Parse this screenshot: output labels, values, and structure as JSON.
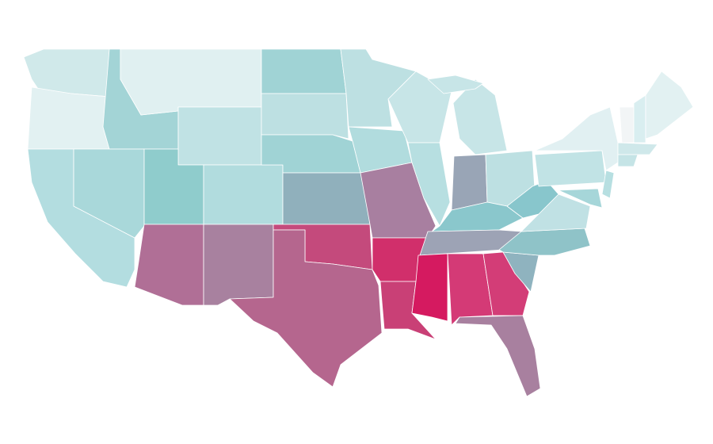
{
  "regions": [
    "#d0e9ea",
    "#e2f1f2",
    "#b3dde0",
    "#a3d4d6",
    "#a9d8da",
    "#e0f0f1",
    "#c0e2e4",
    "#8fcccc",
    "#b06f96",
    "#b1dcde",
    "#a8819f",
    "#a0d3d5",
    "#bde0e2",
    "#a0d3d5",
    "#90b0bc",
    "#c44a7c",
    "#b5668e",
    "#bde0e2",
    "#b1dcde",
    "#a87fa0",
    "#d12f6b",
    "#c94076",
    "#c7e5e7",
    "#b7dfe1",
    "#c7e5e7",
    "#c7e5e7",
    "#99a5b6",
    "#bde0e2",
    "#8ac7cc",
    "#9da3b5",
    "#d51a60",
    "#d43a76",
    "#d33d77",
    "#a8809f",
    "#8fb3bf",
    "#8fc3c8",
    "#c0e1e4",
    "#88c6cc",
    "#c1e3e5",
    "#e1f0f2",
    "#f2f5f6",
    "#d9eef0",
    "#e2f1f2",
    "#cfe8ea",
    "#c5e4e6",
    "#b7dfe1",
    "#a6d6d9"
  ]
}
